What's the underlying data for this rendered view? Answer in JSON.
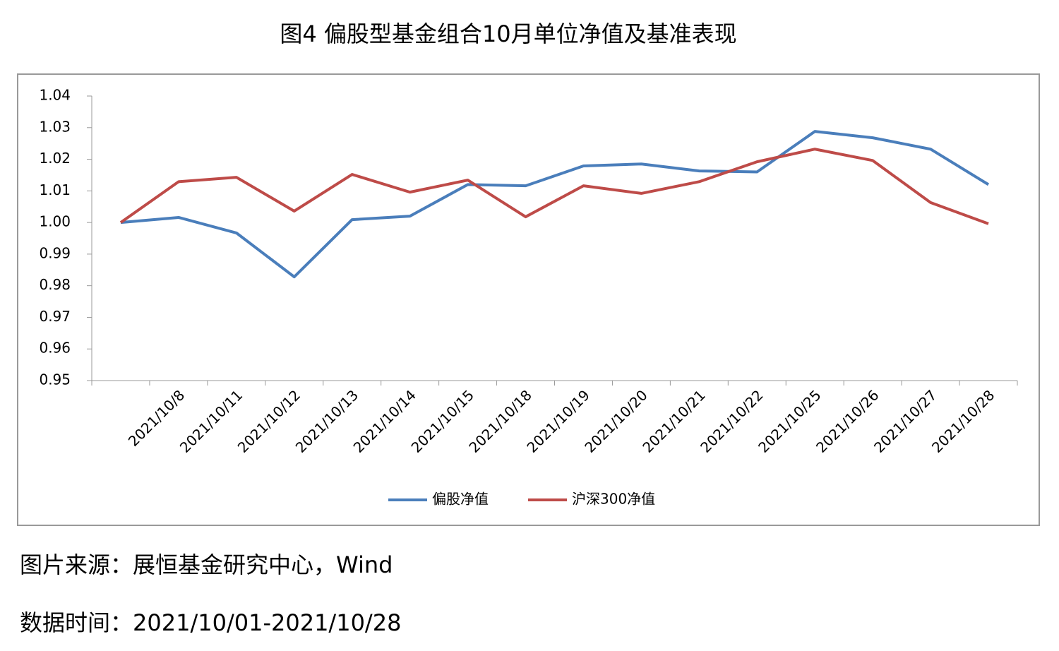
{
  "chart_data": {
    "type": "line",
    "title": "图4 偏股型基金组合10月单位净值及基准表现",
    "categories": [
      null,
      "2021/10/8",
      "2021/10/11",
      "2021/10/12",
      "2021/10/13",
      "2021/10/14",
      "2021/10/15",
      "2021/10/18",
      "2021/10/19",
      "2021/10/20",
      "2021/10/21",
      "2021/10/22",
      "2021/10/25",
      "2021/10/26",
      "2021/10/27",
      "2021/10/28"
    ],
    "series": [
      {
        "name": "偏股净值",
        "color": "#4a7ebb",
        "values": [
          1.0,
          1.0016,
          0.9967,
          0.9828,
          1.0009,
          1.002,
          1.012,
          1.0116,
          1.0179,
          1.0185,
          1.0163,
          1.016,
          1.0288,
          1.0268,
          1.0232,
          1.012
        ]
      },
      {
        "name": "沪深300净值",
        "color": "#be4b48",
        "values": [
          1.0,
          1.0129,
          1.0143,
          1.0036,
          1.0152,
          1.0096,
          1.0134,
          1.0018,
          1.0116,
          1.0092,
          1.0129,
          1.0192,
          1.0232,
          1.0196,
          1.0063,
          0.9996
        ]
      }
    ],
    "ylim": [
      0.95,
      1.04
    ],
    "yticks": [
      0.95,
      0.96,
      0.97,
      0.98,
      0.99,
      {
        "value": 1,
        "label": "1.00"
      },
      1.01,
      1.02,
      1.03,
      1.04
    ],
    "grid": false,
    "legend": "bottom",
    "source": "图片来源：展恒基金研究中心，Wind",
    "date_range": "数据时间：2021/10/01-2021/10/28"
  }
}
